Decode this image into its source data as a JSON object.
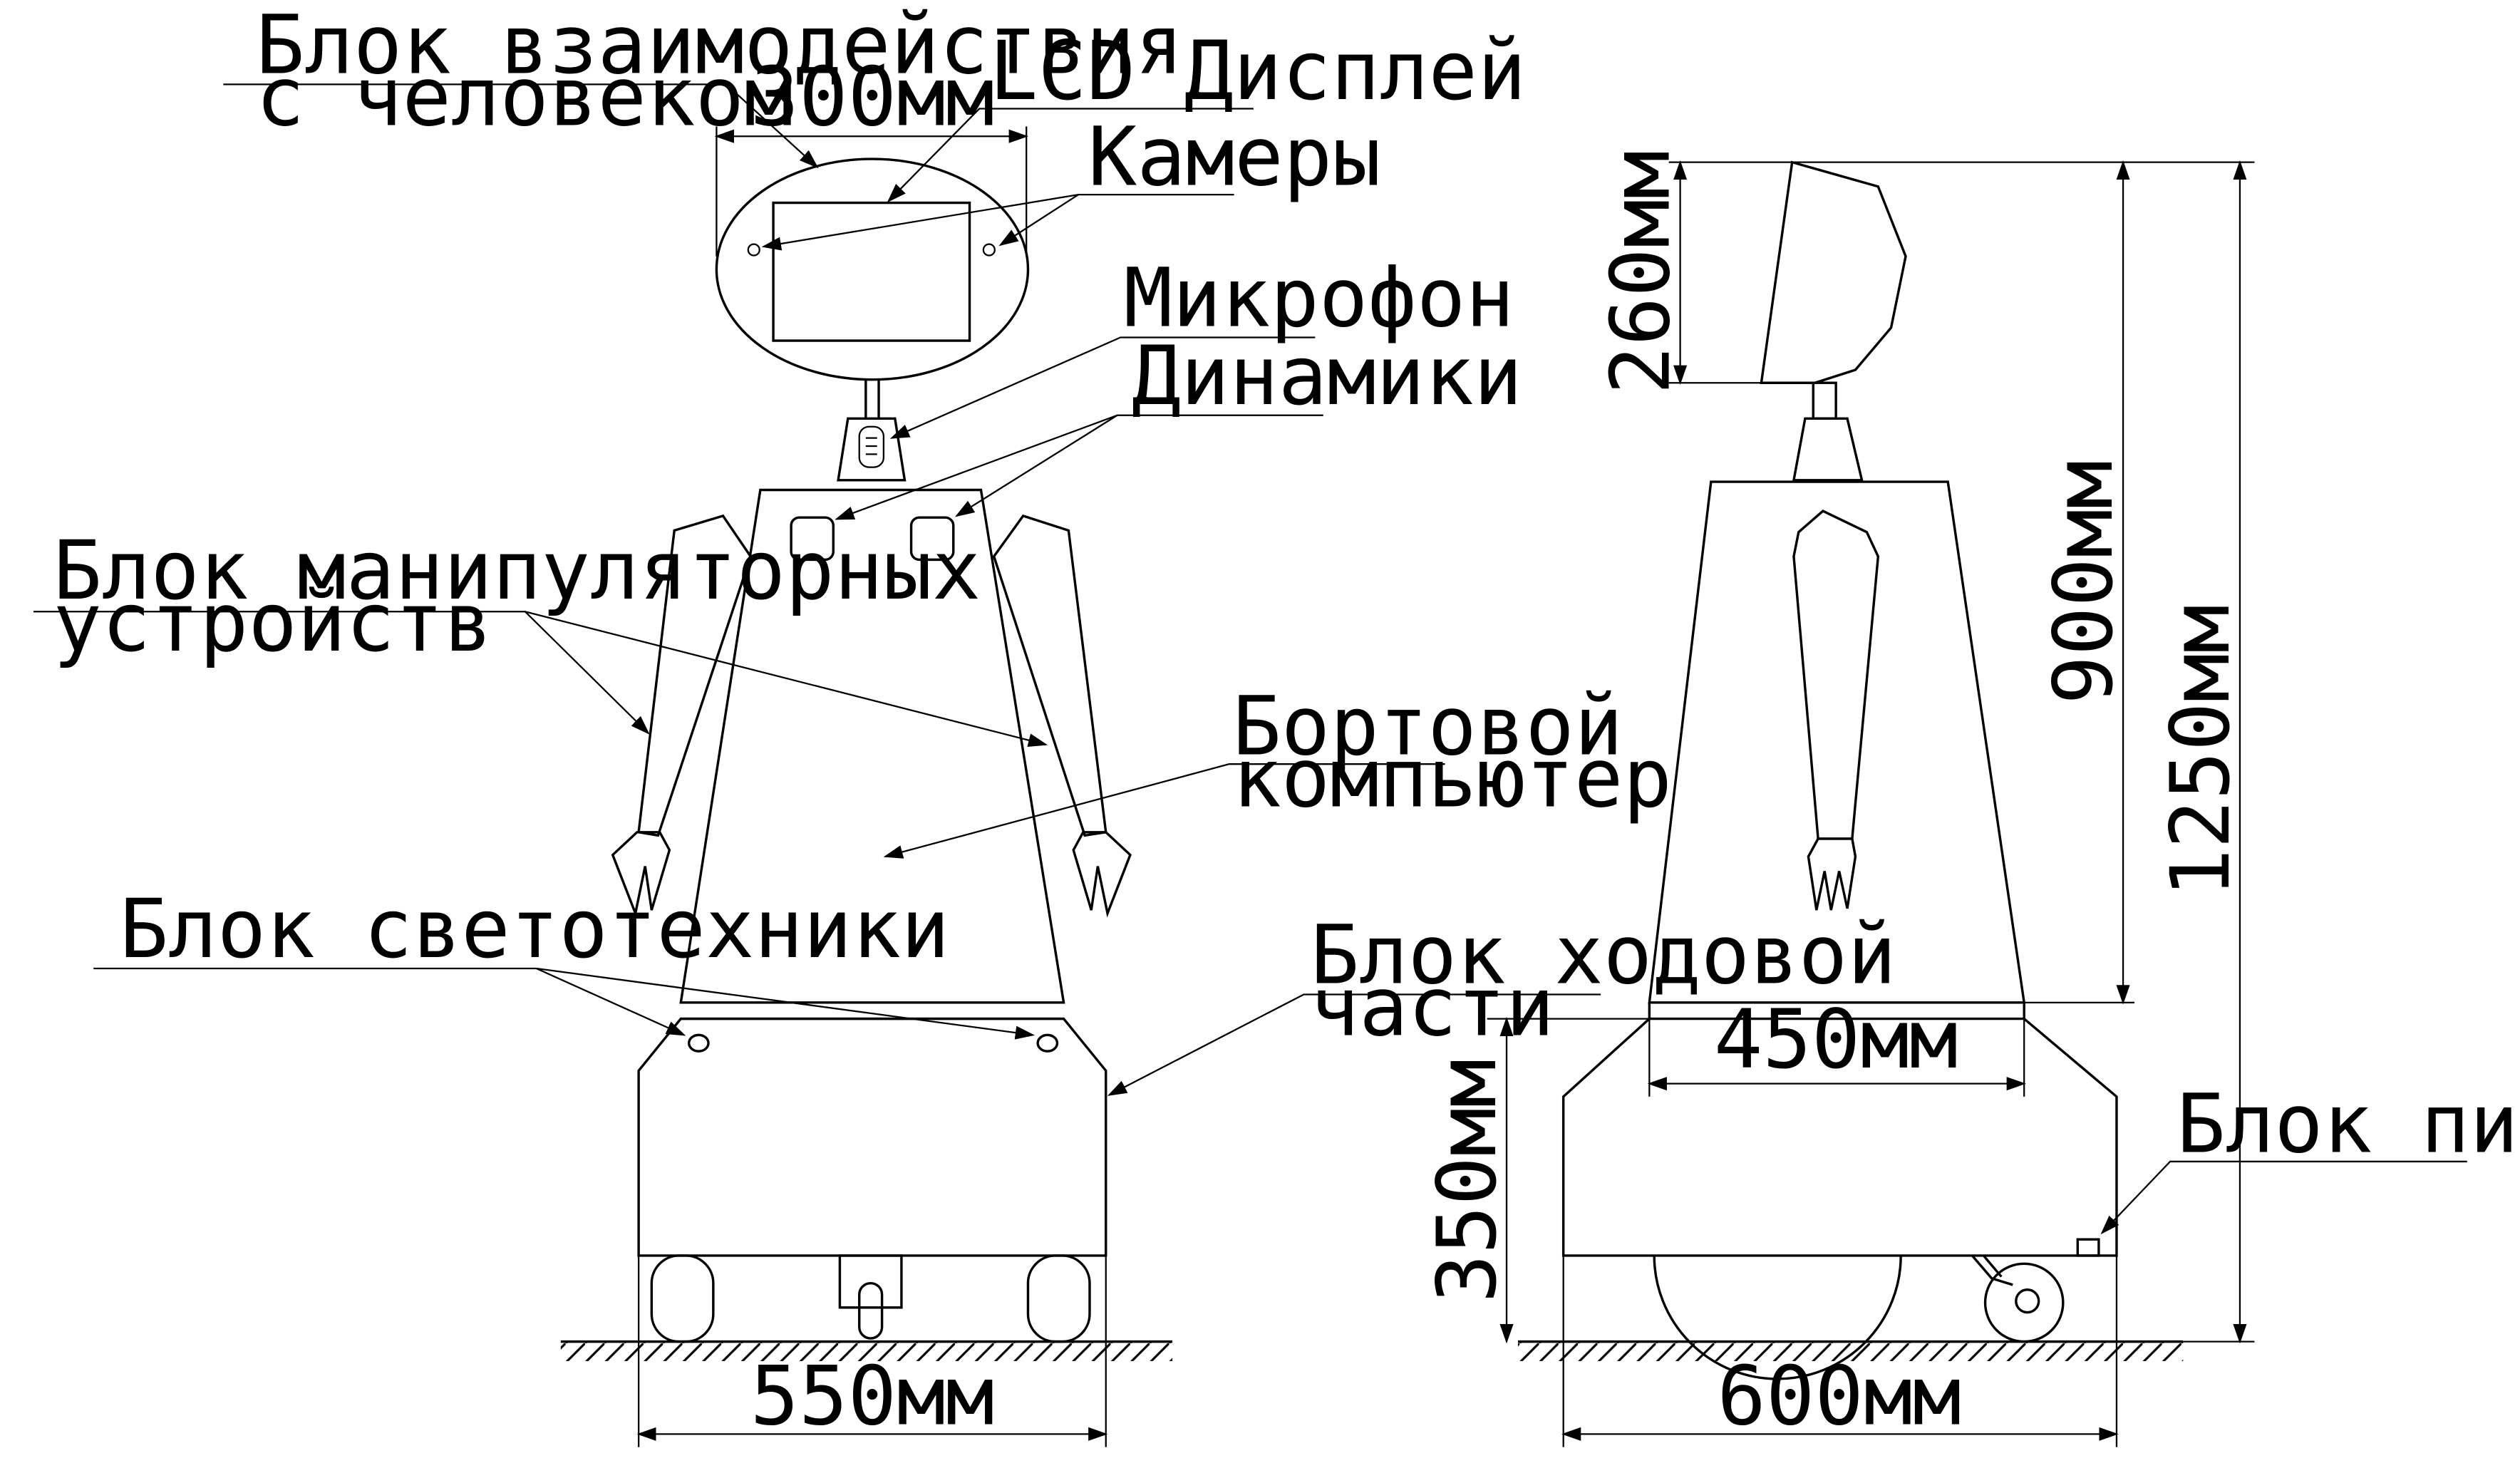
{
  "labels": {
    "interaction_block_line1": "Блок взаимодействия",
    "interaction_block_line2": "с человеком",
    "lcd_display": "LCD Дисплей",
    "cameras": "Камеры",
    "microphone": "Микрофон",
    "speakers": "Динамики",
    "manipulator_block_line1": "Блок манипуляторных",
    "manipulator_block_line2": "устройств",
    "onboard_computer_line1": "Бортовой",
    "onboard_computer_line2": "компьютер",
    "lighting_block": "Блок светотехники",
    "chassis_block_line1": "Блок ходовой",
    "chassis_block_line2": "части",
    "power_block": "Блок питания"
  },
  "dimensions": {
    "head_width": "300мм",
    "base_width_front": "550мм",
    "head_height": "260мм",
    "body_height": "900мм",
    "total_height": "1250мм",
    "chassis_height": "350мм",
    "body_bottom_width": "450мм",
    "base_width_side": "600мм"
  },
  "colors": {
    "line": "#000000",
    "background": "#ffffff"
  }
}
